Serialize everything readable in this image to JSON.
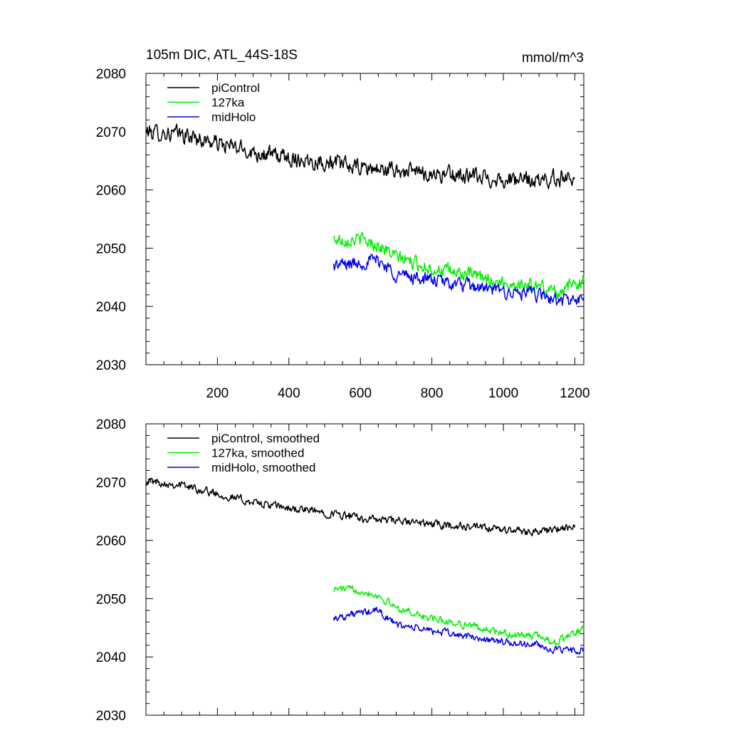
{
  "chart_data": [
    {
      "type": "line",
      "title": "105m DIC, ATL_44S-18S",
      "units": "mmol/m^3",
      "xlabel": "",
      "ylabel": "",
      "xlim": [
        0,
        1225
      ],
      "ylim": [
        2030,
        2080
      ],
      "xticks": [
        200,
        400,
        600,
        800,
        1000,
        1200
      ],
      "xtick_labels": [
        "200",
        "400",
        "600",
        "800",
        "1000",
        "1200"
      ],
      "yticks": [
        2030,
        2040,
        2050,
        2060,
        2070,
        2080
      ],
      "ytick_labels": [
        "2030",
        "2040",
        "2050",
        "2060",
        "2070",
        "2080"
      ],
      "legend_position": "top-left",
      "series": [
        {
          "name": "piControl",
          "color": "#000000",
          "x_start": 0,
          "x_end": 1200,
          "anchors": [
            [
              0,
              2070
            ],
            [
              100,
              2069.5
            ],
            [
              200,
              2068
            ],
            [
              300,
              2066.5
            ],
            [
              400,
              2065.5
            ],
            [
              500,
              2064.8
            ],
            [
              600,
              2063.8
            ],
            [
              700,
              2063.3
            ],
            [
              800,
              2062.8
            ],
            [
              900,
              2062.3
            ],
            [
              1000,
              2061.8
            ],
            [
              1100,
              2061.5
            ],
            [
              1200,
              2062.5
            ]
          ],
          "noise": 1.2
        },
        {
          "name": "127ka",
          "color": "#00ee00",
          "x_start": 525,
          "x_end": 1225,
          "anchors": [
            [
              525,
              2051.5
            ],
            [
              600,
              2051.5
            ],
            [
              650,
              2050.5
            ],
            [
              700,
              2048.5
            ],
            [
              800,
              2046.5
            ],
            [
              900,
              2045.5
            ],
            [
              1000,
              2044
            ],
            [
              1100,
              2043.5
            ],
            [
              1150,
              2042.5
            ],
            [
              1225,
              2044.5
            ]
          ],
          "noise": 1.0
        },
        {
          "name": "midHolo",
          "color": "#0000ee",
          "x_start": 525,
          "x_end": 1225,
          "anchors": [
            [
              525,
              2047
            ],
            [
              600,
              2047.5
            ],
            [
              650,
              2048
            ],
            [
              700,
              2045.5
            ],
            [
              800,
              2044.5
            ],
            [
              900,
              2043.5
            ],
            [
              1000,
              2042.5
            ],
            [
              1100,
              2042
            ],
            [
              1150,
              2041
            ],
            [
              1225,
              2041
            ]
          ],
          "noise": 1.0
        }
      ]
    },
    {
      "type": "line",
      "title": "",
      "units": "",
      "xlabel": "",
      "ylabel": "",
      "xlim": [
        0,
        1225
      ],
      "ylim": [
        2030,
        2080
      ],
      "xticks": [
        200,
        400,
        600,
        800,
        1000,
        1200
      ],
      "xtick_labels": [],
      "yticks": [
        2030,
        2040,
        2050,
        2060,
        2070,
        2080
      ],
      "ytick_labels": [
        "2030",
        "2040",
        "2050",
        "2060",
        "2070",
        "2080"
      ],
      "legend_position": "top-left",
      "series": [
        {
          "name": "piControl, smoothed",
          "color": "#000000",
          "x_start": 0,
          "x_end": 1200,
          "anchors": [
            [
              0,
              2070.3
            ],
            [
              100,
              2069.5
            ],
            [
              200,
              2068
            ],
            [
              300,
              2066.5
            ],
            [
              400,
              2065.5
            ],
            [
              500,
              2064.8
            ],
            [
              600,
              2063.8
            ],
            [
              700,
              2063.3
            ],
            [
              800,
              2062.8
            ],
            [
              900,
              2062.3
            ],
            [
              1000,
              2061.8
            ],
            [
              1100,
              2061.5
            ],
            [
              1200,
              2062.2
            ]
          ],
          "noise": 0.6
        },
        {
          "name": "127ka, smoothed",
          "color": "#00ee00",
          "x_start": 525,
          "x_end": 1225,
          "anchors": [
            [
              525,
              2051.7
            ],
            [
              600,
              2051.5
            ],
            [
              650,
              2050.5
            ],
            [
              700,
              2048.5
            ],
            [
              800,
              2046.5
            ],
            [
              900,
              2045.5
            ],
            [
              1000,
              2044
            ],
            [
              1100,
              2043.5
            ],
            [
              1150,
              2042.5
            ],
            [
              1225,
              2045
            ]
          ],
          "noise": 0.55
        },
        {
          "name": "midHolo, smoothed",
          "color": "#0000ee",
          "x_start": 525,
          "x_end": 1225,
          "anchors": [
            [
              525,
              2046.7
            ],
            [
              600,
              2047.5
            ],
            [
              650,
              2048
            ],
            [
              700,
              2045.5
            ],
            [
              800,
              2044.5
            ],
            [
              900,
              2043.5
            ],
            [
              1000,
              2042.5
            ],
            [
              1100,
              2042
            ],
            [
              1150,
              2041
            ],
            [
              1225,
              2041.2
            ]
          ],
          "noise": 0.55
        }
      ]
    }
  ]
}
